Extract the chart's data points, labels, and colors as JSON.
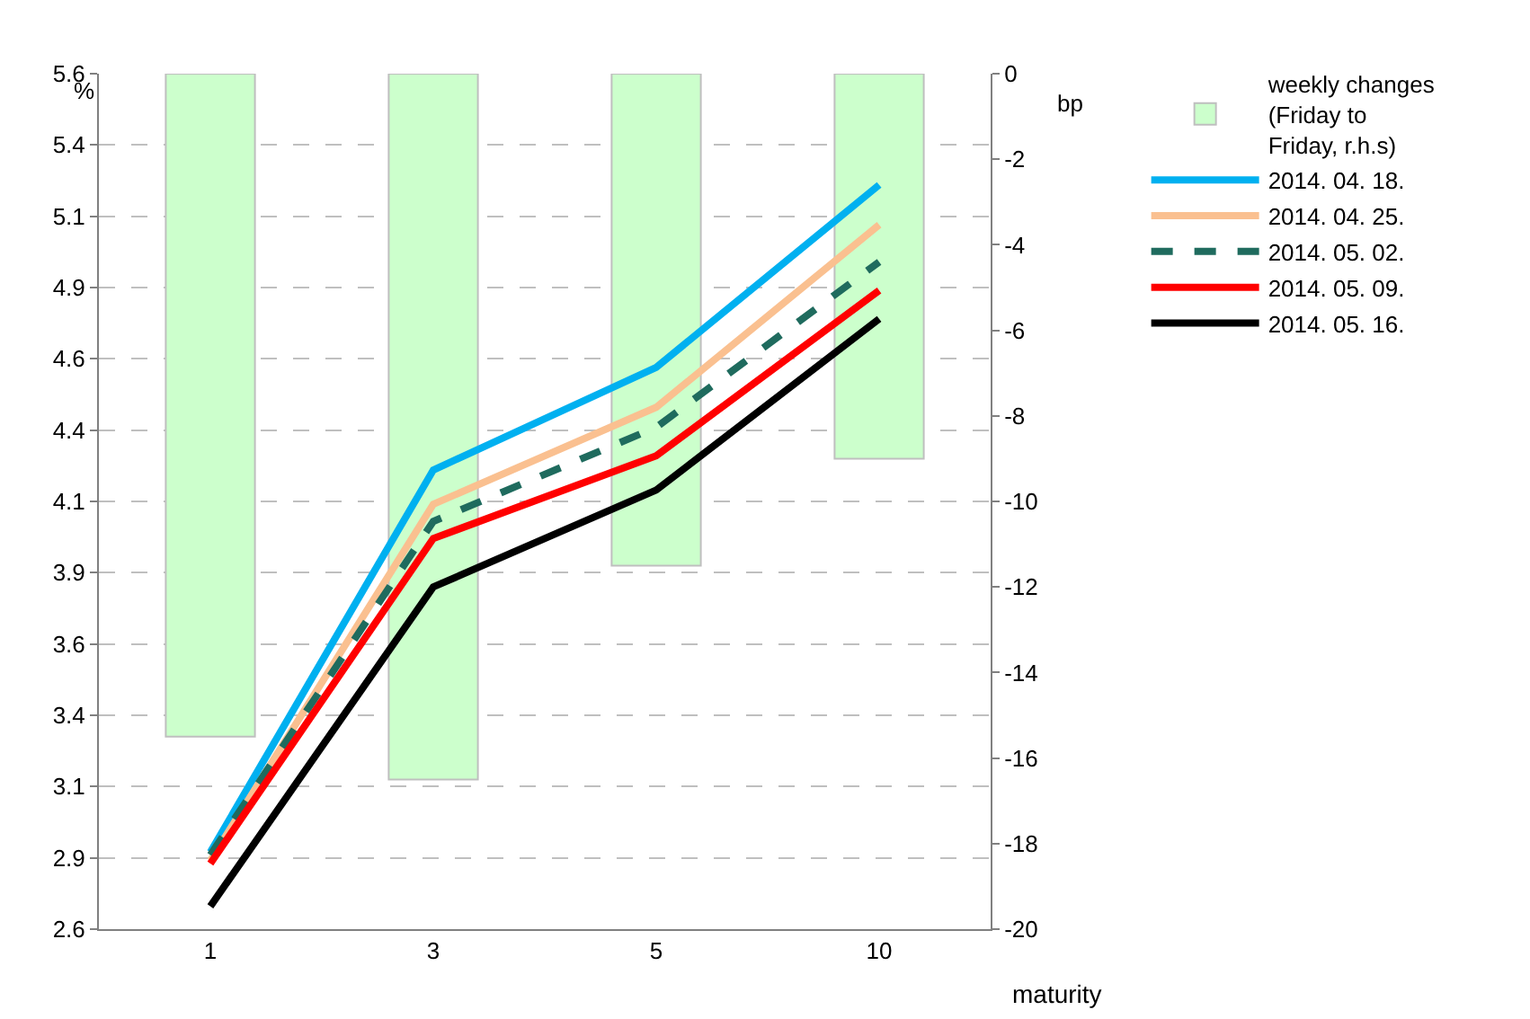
{
  "chart_data": {
    "type": "line",
    "categories": [
      "1",
      "3",
      "5",
      "10"
    ],
    "xlabel": "maturity",
    "ylabel": "%",
    "y2label": "bp",
    "series": [
      {
        "name": "weekly changes (Friday to Friday, r.h.s)",
        "type": "bar",
        "axis": "y2",
        "color": "#ccffcc",
        "values": [
          -15.5,
          -16.5,
          -11.5,
          -9.0
        ]
      },
      {
        "name": "2014. 04. 18.",
        "color": "#00b0f0",
        "values": [
          2.87,
          4.21,
          4.57,
          5.21
        ]
      },
      {
        "name": "2014. 04. 25.",
        "color": "#fac090",
        "values": [
          2.84,
          4.09,
          4.43,
          5.07
        ]
      },
      {
        "name": "2014. 05. 02.",
        "color": "#1f6b5e",
        "line_style": "dashed",
        "values": [
          2.86,
          4.03,
          4.36,
          4.94
        ]
      },
      {
        "name": "2014. 05. 09.",
        "color": "#ff0000",
        "values": [
          2.83,
          3.97,
          4.26,
          4.84
        ]
      },
      {
        "name": "2014. 05. 16.",
        "color": "#000000",
        "values": [
          2.68,
          3.8,
          4.14,
          4.74
        ]
      }
    ],
    "ylim": [
      2.6,
      5.6
    ],
    "yticks": [
      2.6,
      {
        "value": 2.85,
        "label": "2.9"
      },
      3.1,
      {
        "value": 3.35,
        "label": "3.4"
      },
      3.6,
      {
        "value": 3.85,
        "label": "3.9"
      },
      4.1,
      {
        "value": 4.35,
        "label": "4.4"
      },
      4.6,
      {
        "value": 4.85,
        "label": "4.9"
      },
      5.1,
      {
        "value": 5.35,
        "label": "5.4"
      },
      5.6
    ],
    "y2lim": [
      -20,
      0
    ],
    "y2ticks": [
      -20,
      -18,
      -16,
      -14,
      -12,
      -10,
      -8,
      -6,
      -4,
      -2,
      0
    ],
    "grid": "y",
    "legend": "right",
    "line_style": "solid",
    "marker": "none"
  }
}
